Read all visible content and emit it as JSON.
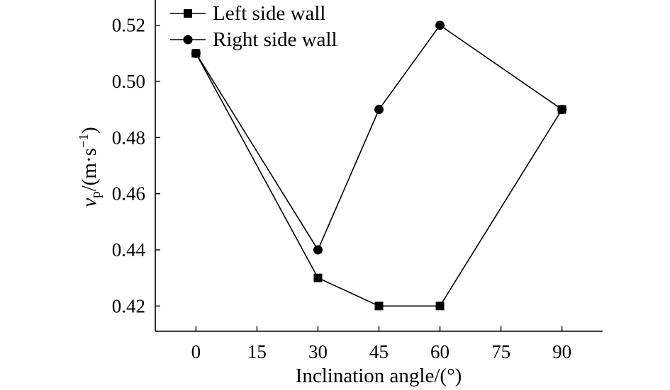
{
  "chart_data": {
    "type": "line",
    "xlabel": "Inclination angle/(°)",
    "ylabel": {
      "var": "v",
      "sub": "p",
      "unit_prefix": "/(m·s",
      "sup": "−1",
      "unit_suffix": ")"
    },
    "xlim": [
      -10,
      100
    ],
    "ylim": [
      0.411,
      0.529
    ],
    "x_ticks": [
      0,
      15,
      30,
      45,
      60,
      75,
      90
    ],
    "x_tick_labels": [
      "0",
      "15",
      "30",
      "45",
      "60",
      "75",
      "90"
    ],
    "y_ticks": [
      0.42,
      0.44,
      0.46,
      0.48,
      0.5,
      0.52
    ],
    "y_tick_labels": [
      "0.42",
      "0.44",
      "0.46",
      "0.48",
      "0.50",
      "0.52"
    ],
    "legend_position": "top-left",
    "grid": false,
    "series": [
      {
        "name": "Left side wall",
        "marker": "square",
        "x": [
          0,
          30,
          45,
          60,
          90
        ],
        "y": [
          0.51,
          0.43,
          0.42,
          0.42,
          0.49
        ]
      },
      {
        "name": "Right side wall",
        "marker": "circle",
        "x": [
          0,
          30,
          45,
          60,
          90
        ],
        "y": [
          0.51,
          0.44,
          0.49,
          0.52,
          0.49
        ]
      }
    ]
  }
}
